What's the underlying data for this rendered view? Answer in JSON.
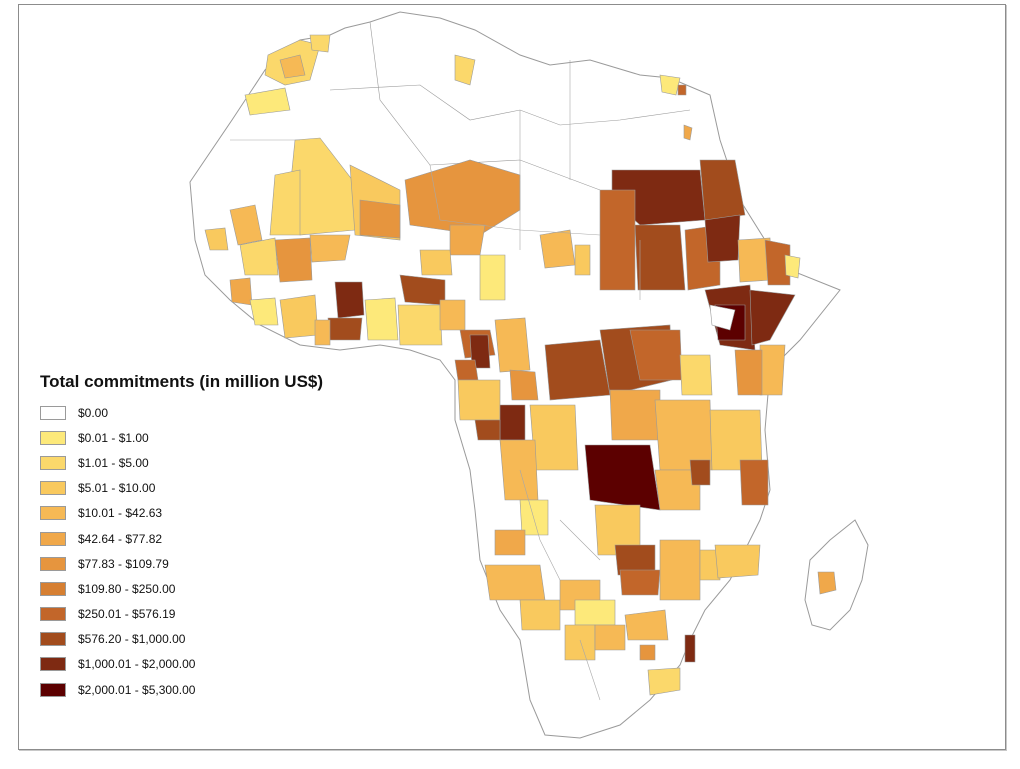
{
  "legend": {
    "title": "Total commitments (in million US$)",
    "items": [
      {
        "label": "$0.00",
        "color": "#ffffff"
      },
      {
        "label": "$0.01 - $1.00",
        "color": "#fde97a"
      },
      {
        "label": "$1.01 - $5.00",
        "color": "#fbd86b"
      },
      {
        "label": "$5.01 - $10.00",
        "color": "#f9c95e"
      },
      {
        "label": "$10.01 - $42.63",
        "color": "#f6b955"
      },
      {
        "label": "$42.64 - $77.82",
        "color": "#f0a84a"
      },
      {
        "label": "$77.83 - $109.79",
        "color": "#e6953e"
      },
      {
        "label": "$109.80 - $250.00",
        "color": "#d67f32"
      },
      {
        "label": "$250.01 - $576.19",
        "color": "#c2662a"
      },
      {
        "label": "$576.20 - $1,000.00",
        "color": "#a24c1d"
      },
      {
        "label": "$1,000.01 - $2,000.00",
        "color": "#7e2a12"
      },
      {
        "label": "$2,000.01 - $5,300.00",
        "color": "#5c0000"
      }
    ]
  }
}
